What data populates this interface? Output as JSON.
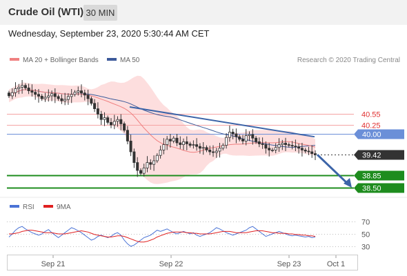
{
  "header": {
    "title": "Crude Oil (WTI)",
    "timeframe": "30 MIN"
  },
  "datetime": "Wednesday, September 23, 2020 5:30:44 AM CET",
  "credit": "Research © 2020 Trading Central",
  "legend": {
    "ma20": "MA 20 + Bollinger Bands",
    "ma50": "MA 50",
    "rsi": "RSI",
    "rsi_ma": "9MA"
  },
  "colors": {
    "candle": "#333333",
    "ma20": "#f08080",
    "ma50": "#3c5a9a",
    "band": "#fdd8d8",
    "resistance": "#f5a3a3",
    "pivot": "#6b8fd8",
    "support": "#1e8c1e",
    "arrow": "#3c64a8",
    "price_tag": "#333333",
    "rsi": "#4b73d6",
    "rsi_ma": "#e02020"
  },
  "chart_data": [
    {
      "type": "candlestick",
      "title": "",
      "x_ticks": [
        "Sep 21",
        "Sep 22",
        "Sep 23",
        "Oct 1"
      ],
      "ylim": [
        38.1,
        41.6
      ],
      "series": [
        {
          "name": "MA 20 + Bollinger Bands"
        },
        {
          "name": "MA 50"
        }
      ],
      "levels": [
        {
          "value": 40.55,
          "label": "40.55",
          "kind": "resistance"
        },
        {
          "value": 40.25,
          "label": "40.25",
          "kind": "resistance"
        },
        {
          "value": 40.0,
          "label": "40.00",
          "kind": "pivot"
        },
        {
          "value": 39.42,
          "label": "39.42",
          "kind": "last"
        },
        {
          "value": 38.85,
          "label": "38.85",
          "kind": "support"
        },
        {
          "value": 38.5,
          "label": "38.50",
          "kind": "support"
        }
      ],
      "close": [
        41.06,
        41.15,
        41.26,
        41.3,
        41.35,
        41.28,
        41.2,
        41.16,
        41.1,
        41.05,
        40.98,
        41.02,
        41.06,
        41.12,
        41.04,
        40.98,
        40.92,
        40.96,
        41.04,
        41.1,
        41.16,
        41.2,
        41.14,
        41.08,
        40.98,
        40.85,
        40.7,
        40.55,
        40.4,
        40.45,
        40.32,
        40.25,
        40.35,
        40.4,
        40.28,
        40.1,
        39.8,
        39.5,
        39.2,
        38.98,
        38.9,
        39.05,
        39.2,
        39.15,
        39.25,
        39.4,
        39.55,
        39.7,
        39.85,
        39.8,
        39.88,
        39.75,
        39.7,
        39.78,
        39.72,
        39.68,
        39.7,
        39.65,
        39.6,
        39.62,
        39.55,
        39.5,
        39.48,
        39.52,
        39.6,
        39.68,
        39.9,
        40.05,
        40.0,
        39.92,
        39.85,
        39.8,
        39.95,
        39.98,
        39.88,
        39.78,
        39.72,
        39.7,
        39.6,
        39.55,
        39.55,
        39.62,
        39.7,
        39.74,
        39.7,
        39.68,
        39.66,
        39.64,
        39.6,
        39.55,
        39.52,
        39.5,
        39.45,
        39.42
      ]
    },
    {
      "type": "line",
      "title": "",
      "ylim": [
        20,
        80
      ],
      "y_ticks": [
        70,
        50,
        30
      ],
      "series": [
        {
          "name": "RSI",
          "values": [
            45,
            50,
            56,
            60,
            62,
            58,
            55,
            52,
            50,
            48,
            50,
            54,
            57,
            52,
            48,
            44,
            48,
            52,
            56,
            60,
            58,
            55,
            52,
            48,
            44,
            40,
            42,
            46,
            48,
            46,
            44,
            46,
            50,
            52,
            48,
            40,
            34,
            30,
            32,
            36,
            40,
            44,
            46,
            48,
            52,
            56,
            54,
            56,
            58,
            55,
            52,
            50,
            52,
            54,
            52,
            50,
            52,
            48,
            46,
            48,
            50,
            52,
            56,
            60,
            58,
            55,
            52,
            50,
            48,
            50,
            52,
            54,
            56,
            60,
            62,
            58,
            54,
            50,
            46,
            48,
            50,
            52,
            54,
            52,
            50,
            48,
            47,
            48,
            47,
            46,
            45,
            46,
            44,
            45
          ]
        },
        {
          "name": "9MA",
          "values": [
            50,
            50,
            51,
            52,
            54,
            55,
            56,
            56,
            55,
            54,
            53,
            52,
            52,
            52,
            51,
            50,
            50,
            50,
            51,
            52,
            53,
            54,
            55,
            54,
            53,
            51,
            49,
            48,
            47,
            46,
            45,
            45,
            46,
            47,
            47,
            46,
            44,
            42,
            40,
            38,
            37,
            37,
            38,
            40,
            42,
            45,
            47,
            49,
            51,
            52,
            53,
            53,
            53,
            53,
            52,
            52,
            51,
            51,
            50,
            50,
            50,
            50,
            51,
            52,
            53,
            54,
            54,
            54,
            53,
            52,
            52,
            52,
            52,
            53,
            54,
            55,
            55,
            55,
            54,
            53,
            52,
            52,
            51,
            51,
            51,
            50,
            50,
            49,
            49,
            48,
            48,
            47,
            47,
            46
          ]
        }
      ]
    }
  ]
}
